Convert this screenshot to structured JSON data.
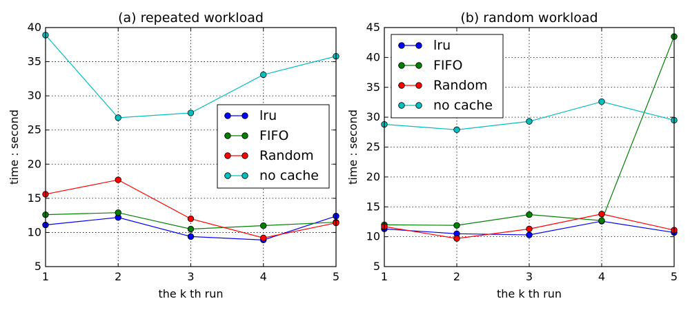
{
  "chart_data": [
    {
      "type": "line",
      "title": "(a) repeated workload",
      "xlabel": "the k th run",
      "ylabel": "time : second",
      "x": [
        1,
        2,
        3,
        4,
        5
      ],
      "xlim": [
        1,
        5
      ],
      "ylim": [
        5,
        40
      ],
      "yticks": [
        5,
        10,
        15,
        20,
        25,
        30,
        35,
        40
      ],
      "grid": true,
      "legend_position": "center-right",
      "series": [
        {
          "name": "lru",
          "color": "#0000ff",
          "values": [
            11.1,
            12.2,
            9.4,
            8.9,
            12.4
          ]
        },
        {
          "name": "FIFO",
          "color": "#008000",
          "values": [
            12.6,
            12.9,
            10.5,
            11.0,
            11.5
          ]
        },
        {
          "name": "Random",
          "color": "#ff0000",
          "values": [
            15.6,
            17.7,
            12.0,
            9.2,
            11.4
          ]
        },
        {
          "name": "no cache",
          "color": "#00bfbf",
          "values": [
            38.9,
            26.8,
            27.5,
            33.1,
            35.8
          ]
        }
      ]
    },
    {
      "type": "line",
      "title": "(b) random workload",
      "xlabel": "the k th run",
      "ylabel": "time : second",
      "x": [
        1,
        2,
        3,
        4,
        5
      ],
      "xlim": [
        1,
        5
      ],
      "ylim": [
        5,
        45
      ],
      "yticks": [
        5,
        10,
        15,
        20,
        25,
        30,
        35,
        40,
        45
      ],
      "grid": true,
      "legend_position": "top-left",
      "series": [
        {
          "name": "lru",
          "color": "#0000ff",
          "values": [
            11.3,
            10.5,
            10.3,
            12.6,
            10.7
          ]
        },
        {
          "name": "FIFO",
          "color": "#008000",
          "values": [
            12.0,
            11.9,
            13.7,
            12.7,
            43.5
          ]
        },
        {
          "name": "Random",
          "color": "#ff0000",
          "values": [
            11.7,
            9.7,
            11.3,
            13.8,
            11.1
          ]
        },
        {
          "name": "no cache",
          "color": "#00bfbf",
          "values": [
            28.8,
            27.9,
            29.3,
            32.6,
            29.5
          ]
        }
      ]
    }
  ]
}
